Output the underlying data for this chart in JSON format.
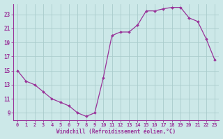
{
  "x": [
    0,
    1,
    2,
    3,
    4,
    5,
    6,
    7,
    8,
    9,
    10,
    11,
    12,
    13,
    14,
    15,
    16,
    17,
    18,
    19,
    20,
    21,
    22,
    23
  ],
  "y": [
    15.0,
    13.5,
    13.0,
    12.0,
    11.0,
    10.5,
    10.0,
    9.0,
    8.5,
    9.0,
    14.0,
    20.0,
    20.5,
    20.5,
    21.5,
    23.5,
    23.5,
    23.8,
    24.0,
    24.0,
    22.5,
    22.0,
    19.5,
    16.5
  ],
  "line_color": "#993399",
  "marker": "D",
  "marker_size": 2.0,
  "background_color": "#cce8e8",
  "grid_color": "#aacccc",
  "xlabel": "Windchill (Refroidissement éolien,°C)",
  "xlabel_color": "#993399",
  "tick_color": "#993399",
  "ylim": [
    8.0,
    24.5
  ],
  "xlim": [
    -0.5,
    23.5
  ],
  "yticks": [
    9,
    11,
    13,
    15,
    17,
    19,
    21,
    23
  ],
  "xticks": [
    0,
    1,
    2,
    3,
    4,
    5,
    6,
    7,
    8,
    9,
    10,
    11,
    12,
    13,
    14,
    15,
    16,
    17,
    18,
    19,
    20,
    21,
    22,
    23
  ],
  "xtick_labels": [
    "0",
    "1",
    "2",
    "3",
    "4",
    "5",
    "6",
    "7",
    "8",
    "9",
    "10",
    "11",
    "12",
    "13",
    "14",
    "15",
    "16",
    "17",
    "18",
    "19",
    "20",
    "21",
    "22",
    "23"
  ]
}
